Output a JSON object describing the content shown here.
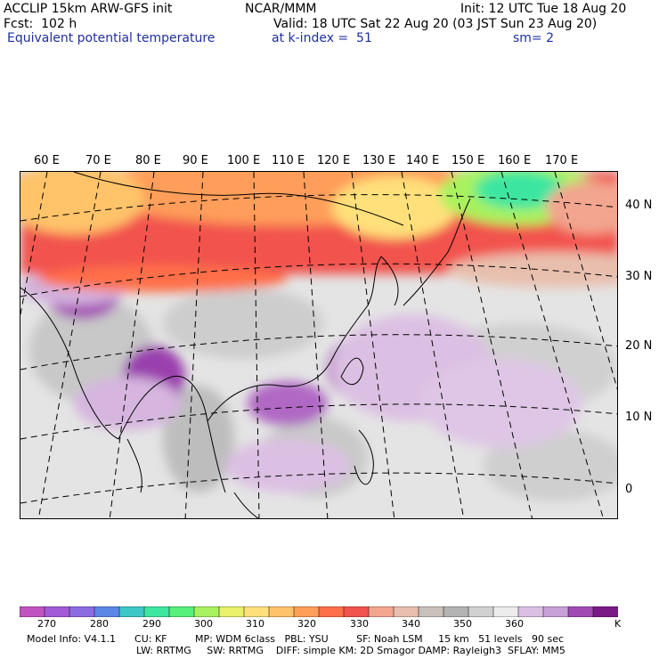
{
  "header": {
    "model_line": "ACCLIP 15km ARW-GFS init",
    "org": "NCAR/MMM",
    "init": "Init: 12 UTC Tue 18 Aug 20",
    "fcst": "Fcst:  102 h",
    "valid": "Valid: 18 UTC Sat 22 Aug 20 (03 JST Sun 23 Aug 20)",
    "field": "Equivalent potential temperature",
    "k_index": "at k-index =  51",
    "smoothing": "sm= 2"
  },
  "map": {
    "lon_labels": [
      "60 E",
      "70 E",
      "80 E",
      "90 E",
      "100 E",
      "110 E",
      "120 E",
      "130 E",
      "140 E",
      "150 E",
      "160 E",
      "170 E"
    ],
    "lat_labels": [
      "40 N",
      "30 N",
      "20 N",
      "10 N",
      "0"
    ]
  },
  "colorbar": {
    "colors": [
      "#c154c1",
      "#a35bd6",
      "#8b6ce0",
      "#5b87e6",
      "#3ec7c7",
      "#3ee6a0",
      "#57f07a",
      "#a8f25f",
      "#e9f06a",
      "#ffe07a",
      "#ffc36b",
      "#ff9e5a",
      "#ff6f4a",
      "#f2534d",
      "#f2a58f",
      "#e8bfae",
      "#c9c1bb",
      "#b3b3b3",
      "#d0d0d0",
      "#ececec",
      "#dcc0e3",
      "#c7a0d8",
      "#a24ab4",
      "#7a1a86"
    ],
    "tick_labels": [
      "270",
      "280",
      "290",
      "300",
      "310",
      "320",
      "330",
      "340",
      "350",
      "360"
    ],
    "unit": "K"
  },
  "footer": {
    "line1": "Model Info: V4.1.1      CU: KF         MP: WDM 6class   PBL: YSU         SF: Noah LSM     15 km   51 levels   90 sec",
    "line2": "LW: RRTMG     SW: RRTMG    DIFF: simple KM: 2D Smagor DAMP: Rayleigh3  SFLAY: MM5"
  }
}
